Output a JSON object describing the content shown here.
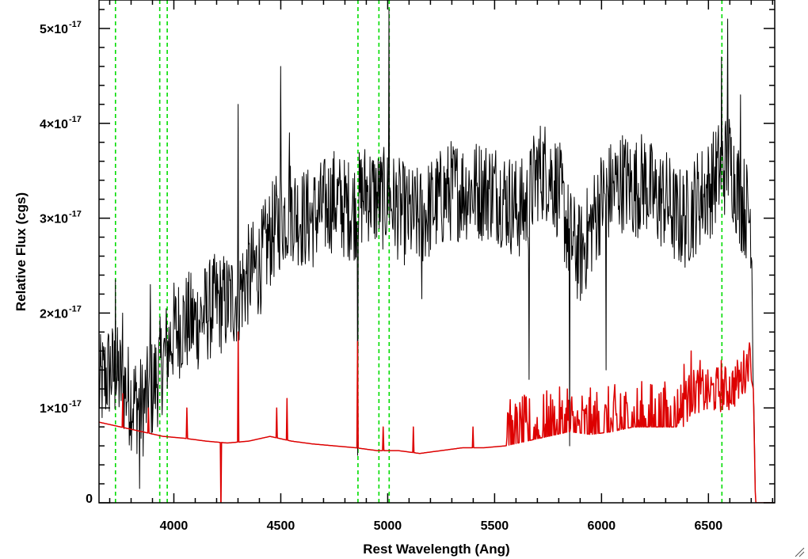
{
  "chart_data": {
    "type": "line",
    "xlabel": "Rest Wavelength (Ang)",
    "ylabel": "Relative Flux (cgs)",
    "xlim": [
      3650,
      6810
    ],
    "ylim": [
      0,
      5.3
    ],
    "y_unit_power": -17,
    "x_ticks": [
      4000,
      4500,
      5000,
      5500,
      6000,
      6500
    ],
    "x_tick_labels": [
      "4000",
      "4500",
      "5000",
      "5500",
      "6000",
      "6500"
    ],
    "y_ticks": [
      0,
      1,
      2,
      3,
      4,
      5
    ],
    "y_tick_labels": [
      {
        "mantissa": "0",
        "exponent": ""
      },
      {
        "mantissa": "1×10",
        "exponent": "-17"
      },
      {
        "mantissa": "2×10",
        "exponent": "-17"
      },
      {
        "mantissa": "3×10",
        "exponent": "-17"
      },
      {
        "mantissa": "4×10",
        "exponent": "-17"
      },
      {
        "mantissa": "5×10",
        "exponent": "-17"
      }
    ],
    "vertical_lines": [
      3727,
      3934,
      3969,
      4861,
      4959,
      5007,
      6563
    ],
    "vertical_line_color": "#00dd00",
    "series": [
      {
        "color": "#000000",
        "x": [
          3650,
          3700,
          3750,
          3800,
          3850,
          3900,
          3950,
          4000,
          4050,
          4100,
          4150,
          4200,
          4250,
          4300,
          4350,
          4400,
          4450,
          4500,
          4550,
          4600,
          4650,
          4700,
          4750,
          4800,
          4850,
          4900,
          4950,
          5000,
          5050,
          5100,
          5150,
          5200,
          5250,
          5300,
          5350,
          5400,
          5450,
          5500,
          5550,
          5600,
          5650,
          5700,
          5750,
          5800,
          5850,
          5900,
          5950,
          6000,
          6050,
          6100,
          6150,
          6200,
          6250,
          6300,
          6350,
          6400,
          6450,
          6500,
          6550,
          6600,
          6650,
          6700,
          6720
        ],
        "y": [
          1.2,
          1.4,
          1.3,
          1.1,
          1.0,
          1.2,
          1.5,
          1.8,
          1.9,
          1.9,
          2.0,
          2.1,
          2.1,
          2.2,
          2.4,
          2.5,
          2.8,
          3.0,
          3.1,
          3.0,
          3.0,
          3.1,
          3.2,
          3.1,
          3.1,
          3.3,
          3.2,
          3.2,
          3.1,
          3.0,
          3.0,
          3.1,
          3.2,
          3.3,
          3.3,
          3.3,
          3.3,
          3.3,
          3.2,
          3.1,
          3.1,
          3.5,
          3.5,
          3.3,
          2.8,
          2.6,
          2.9,
          3.2,
          3.3,
          3.4,
          3.3,
          3.4,
          3.2,
          3.2,
          3.0,
          3.0,
          3.2,
          3.3,
          3.5,
          3.6,
          3.2,
          3.0,
          0.0
        ],
        "spikes": [
          [
            3727,
            2.35
          ],
          [
            3760,
            2.0
          ],
          [
            3840,
            0.15
          ],
          [
            3890,
            2.3
          ],
          [
            4300,
            4.2
          ],
          [
            4500,
            4.6
          ],
          [
            4540,
            3.9
          ],
          [
            4860,
            0.5
          ],
          [
            5005,
            5.2
          ],
          [
            5160,
            2.15
          ],
          [
            5660,
            1.3
          ],
          [
            5850,
            0.6
          ],
          [
            6020,
            1.4
          ],
          [
            6560,
            4.7
          ],
          [
            6590,
            5.1
          ],
          [
            6650,
            4.3
          ]
        ]
      },
      {
        "color": "#dd0000",
        "x": [
          3650,
          3750,
          3850,
          3950,
          4050,
          4150,
          4250,
          4350,
          4450,
          4550,
          4650,
          4750,
          4850,
          4950,
          5050,
          5150,
          5250,
          5350,
          5450,
          5550,
          5650,
          5750,
          5850,
          5950,
          6050,
          6150,
          6250,
          6350,
          6400,
          6450,
          6500,
          6550,
          6600,
          6650,
          6690,
          6700,
          6710,
          6720,
          6810
        ],
        "y": [
          0.85,
          0.8,
          0.75,
          0.7,
          0.68,
          0.65,
          0.63,
          0.65,
          0.7,
          0.65,
          0.62,
          0.6,
          0.58,
          0.55,
          0.55,
          0.52,
          0.55,
          0.58,
          0.58,
          0.6,
          0.65,
          0.7,
          0.75,
          0.72,
          0.75,
          0.8,
          0.8,
          0.8,
          1.0,
          1.1,
          1.05,
          1.1,
          1.1,
          1.2,
          1.4,
          1.3,
          1.2,
          0.0,
          0.0
        ],
        "spikes": [
          [
            3760,
            1.15
          ],
          [
            3880,
            1.0
          ],
          [
            4060,
            1.0
          ],
          [
            4220,
            -0.1
          ],
          [
            4300,
            1.8
          ],
          [
            4480,
            1.0
          ],
          [
            4530,
            1.1
          ],
          [
            4860,
            1.7
          ],
          [
            4980,
            0.8
          ],
          [
            5120,
            0.8
          ],
          [
            5400,
            0.8
          ],
          [
            5560,
            0.95
          ],
          [
            5700,
            0.9
          ],
          [
            5840,
            1.2
          ],
          [
            6090,
            1.15
          ],
          [
            6420,
            1.6
          ],
          [
            6460,
            1.5
          ],
          [
            6560,
            1.5
          ],
          [
            6690,
            1.6
          ]
        ]
      }
    ]
  }
}
